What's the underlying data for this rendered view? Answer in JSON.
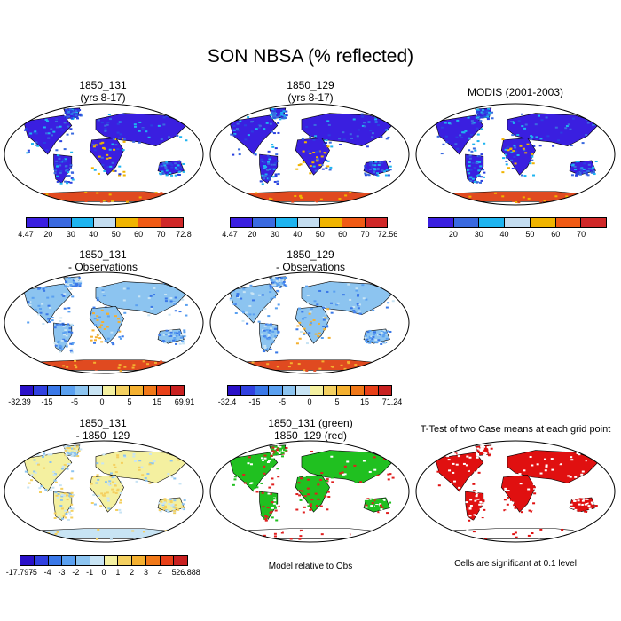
{
  "title": "SON NBSA (% reflected)",
  "panels": [
    {
      "id": "p1",
      "title_lines": [
        "1850_131",
        "(yrs 8-17)"
      ],
      "style": "abs"
    },
    {
      "id": "p2",
      "title_lines": [
        "1850_129",
        "(yrs 8-17)"
      ],
      "style": "abs"
    },
    {
      "id": "p3",
      "title_lines": [
        "MODIS (2001-2003)"
      ],
      "style": "abs"
    },
    {
      "id": "p4",
      "title_lines": [
        "1850_131",
        "- Observations"
      ],
      "style": "diff"
    },
    {
      "id": "p5",
      "title_lines": [
        "1850_129",
        "- Observations"
      ],
      "style": "diff"
    },
    {
      "id": "p7",
      "title_lines": [
        "1850_131",
        "- 1850_129"
      ],
      "style": "case"
    },
    {
      "id": "p8",
      "title_lines": [
        "1850_131 (green)",
        "1850_129 (red)"
      ],
      "style": "green"
    },
    {
      "id": "p9",
      "title_lines": [
        "T-Test of two Case means at each grid point"
      ],
      "style": "ttest"
    }
  ],
  "notes": {
    "p8": "Model relative to Obs",
    "p9": "Cells are significant at 0.1 level"
  },
  "colorbars": {
    "abs1": {
      "colors": [
        "#3a1fe0",
        "#3a6ae0",
        "#1eb4f0",
        "#c4ddf0",
        "#f0b400",
        "#f05a14",
        "#d02828"
      ],
      "labels": [
        "4.47",
        "20",
        "30",
        "40",
        "50",
        "60",
        "70",
        "72.8"
      ]
    },
    "abs2": {
      "colors": [
        "#3a1fe0",
        "#3a6ae0",
        "#1eb4f0",
        "#c4ddf0",
        "#f0b400",
        "#f05a14",
        "#d02828"
      ],
      "labels": [
        "4.47",
        "20",
        "30",
        "40",
        "50",
        "60",
        "70",
        "72.56"
      ]
    },
    "abs3": {
      "colors": [
        "#3a1fe0",
        "#3a6ae0",
        "#1eb4f0",
        "#c4ddf0",
        "#f0b400",
        "#f05a14",
        "#d02828"
      ],
      "labels": [
        "",
        "20",
        "30",
        "40",
        "50",
        "60",
        "70",
        ""
      ]
    },
    "diff1": {
      "colors": [
        "#2a10c8",
        "#3040e0",
        "#3a78e8",
        "#5aa0f0",
        "#8cc4f0",
        "#c8e4f4",
        "#f4f0a0",
        "#f4d060",
        "#f4b030",
        "#f07818",
        "#e84018",
        "#c82020"
      ],
      "labels": [
        "-32.39",
        "",
        "-15",
        "",
        "-5",
        "",
        "0",
        "",
        "5",
        "",
        "15",
        "",
        "69.91"
      ]
    },
    "diff2": {
      "colors": [
        "#2a10c8",
        "#3040e0",
        "#3a78e8",
        "#5aa0f0",
        "#8cc4f0",
        "#c8e4f4",
        "#f4f0a0",
        "#f4d060",
        "#f4b030",
        "#f07818",
        "#e84018",
        "#c82020"
      ],
      "labels": [
        "-32.4",
        "",
        "-15",
        "",
        "-5",
        "",
        "0",
        "",
        "5",
        "",
        "15",
        "",
        "71.24"
      ]
    },
    "case": {
      "colors": [
        "#2a10c8",
        "#3040e0",
        "#3a78e8",
        "#5aa0f0",
        "#8cc4f0",
        "#c8e4f4",
        "#f4f0a0",
        "#f4d060",
        "#f4b030",
        "#f07818",
        "#e84018",
        "#c82020"
      ],
      "labels": [
        "-17.797",
        "-5",
        "-4",
        "-3",
        "-2",
        "-1",
        "0",
        "1",
        "2",
        "3",
        "4",
        "5",
        "26.888"
      ]
    }
  }
}
